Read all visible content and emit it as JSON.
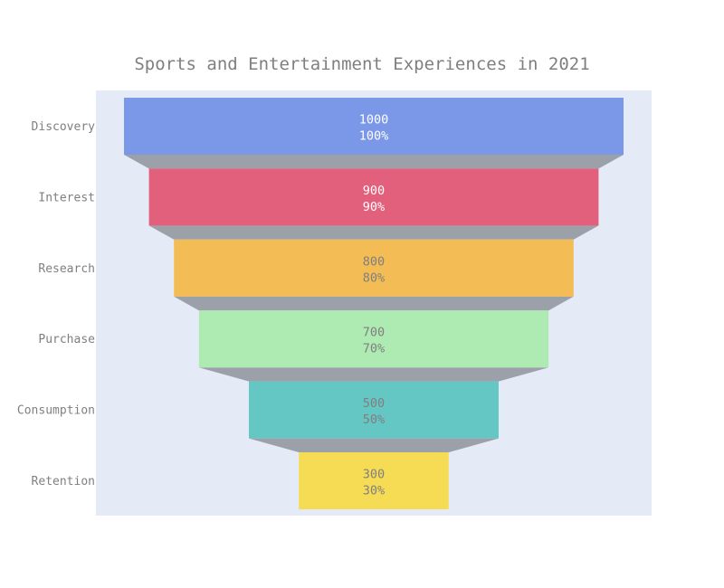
{
  "chart_data": {
    "type": "funnel",
    "title": "Sports and Entertainment Experiences in 2021",
    "stages": [
      "Discovery",
      "Interest",
      "Research",
      "Purchase",
      "Consumption",
      "Retention"
    ],
    "values": [
      1000,
      900,
      800,
      700,
      500,
      300
    ],
    "percent_labels": [
      "100%",
      "90%",
      "80%",
      "70%",
      "50%",
      "30%"
    ],
    "colors": [
      "#7b97e8",
      "#e2607c",
      "#f3bc55",
      "#aeebb2",
      "#65c7c4",
      "#f6dc55"
    ],
    "text_colors": [
      "#ffffff",
      "#ffffff",
      "#7f7f7f",
      "#7f7f7f",
      "#7f7f7f",
      "#7f7f7f"
    ],
    "connector_color": "#9ca0a8",
    "plot_background": "#e5ebf6",
    "label_color": "#7f7f7f"
  }
}
